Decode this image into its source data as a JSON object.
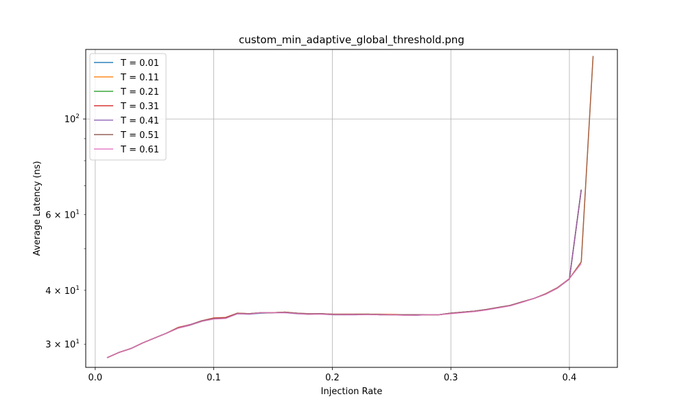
{
  "chart_data": {
    "type": "line",
    "title": "custom_min_adaptive_global_threshold.png",
    "xlabel": "Injection Rate",
    "ylabel": "Average Latency (ns)",
    "xlim": [
      -0.008,
      0.4405
    ],
    "ylim": [
      26.5,
      145
    ],
    "yscale": "log",
    "grid": true,
    "legend_position": "upper-left",
    "x_ticks": [
      0.0,
      0.1,
      0.2,
      0.3,
      0.4
    ],
    "x_tick_labels": [
      "0.0",
      "0.1",
      "0.2",
      "0.3",
      "0.4"
    ],
    "y_major_ticks": [
      100
    ],
    "y_major_tick_labels": [
      {
        "base": "10",
        "exp": "2"
      }
    ],
    "y_minor_ticks": [
      30,
      40,
      50,
      60,
      70,
      80,
      90
    ],
    "y_minor_tick_labels": [
      {
        "value": 30,
        "base": "3 × 10",
        "exp": "1"
      },
      {
        "value": 40,
        "base": "4 × 10",
        "exp": "1"
      },
      {
        "value": 60,
        "base": "6 × 10",
        "exp": "1"
      }
    ],
    "series": [
      {
        "name": "T = 0.01",
        "color": "#1f77b4",
        "x": [
          0.01,
          0.02,
          0.03,
          0.04,
          0.05,
          0.06,
          0.07,
          0.08,
          0.09,
          0.1,
          0.11,
          0.12,
          0.13,
          0.14,
          0.15,
          0.16,
          0.17,
          0.18,
          0.19,
          0.2,
          0.21,
          0.22,
          0.23,
          0.24,
          0.25,
          0.26,
          0.27,
          0.28,
          0.29,
          0.3,
          0.31,
          0.32,
          0.33,
          0.34,
          0.35,
          0.36,
          0.37,
          0.38,
          0.39,
          0.4,
          0.41
        ],
        "y": [
          27.9,
          28.7,
          29.3,
          30.2,
          31.0,
          31.8,
          32.7,
          33.2,
          33.9,
          34.4,
          34.5,
          35.3,
          35.2,
          35.4,
          35.5,
          35.5,
          35.3,
          35.2,
          35.3,
          35.1,
          35.1,
          35.1,
          35.2,
          35.1,
          35.1,
          35.1,
          35.0,
          35.1,
          35.1,
          35.4,
          35.6,
          35.8,
          36.1,
          36.5,
          36.9,
          37.6,
          38.3,
          39.2,
          40.5,
          42.5,
          68.5
        ]
      },
      {
        "name": "T = 0.11",
        "color": "#ff7f0e",
        "x": [
          0.01,
          0.02,
          0.03,
          0.04,
          0.05,
          0.06,
          0.07,
          0.08,
          0.09,
          0.1,
          0.11,
          0.12,
          0.13,
          0.14,
          0.15,
          0.16,
          0.17,
          0.18,
          0.19,
          0.2,
          0.21,
          0.22,
          0.23,
          0.24,
          0.25,
          0.26,
          0.27,
          0.28,
          0.29,
          0.3,
          0.31,
          0.32,
          0.33,
          0.34,
          0.35,
          0.36,
          0.37,
          0.38,
          0.39,
          0.4,
          0.41,
          0.42
        ],
        "y": [
          27.9,
          28.7,
          29.3,
          30.2,
          31.0,
          31.8,
          32.8,
          33.3,
          34.0,
          34.5,
          34.6,
          35.4,
          35.3,
          35.5,
          35.5,
          35.6,
          35.4,
          35.3,
          35.3,
          35.2,
          35.2,
          35.2,
          35.2,
          35.2,
          35.2,
          35.1,
          35.1,
          35.1,
          35.1,
          35.4,
          35.6,
          35.8,
          36.1,
          36.5,
          36.9,
          37.6,
          38.3,
          39.3,
          40.6,
          42.6,
          46.5,
          140
        ]
      },
      {
        "name": "T = 0.21",
        "color": "#2ca02c",
        "x": [
          0.01,
          0.02,
          0.03,
          0.04,
          0.05,
          0.06,
          0.07,
          0.08,
          0.09,
          0.1,
          0.11,
          0.12,
          0.13,
          0.14,
          0.15,
          0.16,
          0.17,
          0.18,
          0.19,
          0.2,
          0.21,
          0.22,
          0.23,
          0.24,
          0.25,
          0.26,
          0.27,
          0.28,
          0.29,
          0.3,
          0.31,
          0.32,
          0.33,
          0.34,
          0.35,
          0.36,
          0.37,
          0.38,
          0.39,
          0.4,
          0.41
        ],
        "y": [
          27.9,
          28.7,
          29.3,
          30.2,
          31.0,
          31.8,
          32.8,
          33.2,
          33.9,
          34.4,
          34.5,
          35.3,
          35.3,
          35.5,
          35.5,
          35.6,
          35.4,
          35.2,
          35.3,
          35.1,
          35.1,
          35.2,
          35.2,
          35.1,
          35.1,
          35.1,
          35.1,
          35.1,
          35.1,
          35.4,
          35.6,
          35.8,
          36.1,
          36.5,
          36.9,
          37.6,
          38.3,
          39.2,
          40.5,
          42.5,
          68.6
        ]
      },
      {
        "name": "T = 0.31",
        "color": "#d62728",
        "x": [
          0.01,
          0.02,
          0.03,
          0.04,
          0.05,
          0.06,
          0.07,
          0.08,
          0.09,
          0.1,
          0.11,
          0.12,
          0.13,
          0.14,
          0.15,
          0.16,
          0.17,
          0.18,
          0.19,
          0.2,
          0.21,
          0.22,
          0.23,
          0.24,
          0.25,
          0.26,
          0.27,
          0.28,
          0.29,
          0.3,
          0.31,
          0.32,
          0.33,
          0.34,
          0.35,
          0.36,
          0.37,
          0.38,
          0.39,
          0.4,
          0.41
        ],
        "y": [
          27.9,
          28.7,
          29.3,
          30.2,
          31.0,
          31.8,
          32.8,
          33.3,
          34.0,
          34.5,
          34.6,
          35.4,
          35.3,
          35.5,
          35.5,
          35.6,
          35.4,
          35.2,
          35.3,
          35.2,
          35.2,
          35.2,
          35.2,
          35.1,
          35.1,
          35.1,
          35.1,
          35.1,
          35.1,
          35.4,
          35.6,
          35.8,
          36.1,
          36.5,
          36.9,
          37.6,
          38.3,
          39.2,
          40.5,
          42.5,
          68.4
        ]
      },
      {
        "name": "T = 0.41",
        "color": "#9467bd",
        "x": [
          0.01,
          0.02,
          0.03,
          0.04,
          0.05,
          0.06,
          0.07,
          0.08,
          0.09,
          0.1,
          0.11,
          0.12,
          0.13,
          0.14,
          0.15,
          0.16,
          0.17,
          0.18,
          0.19,
          0.2,
          0.21,
          0.22,
          0.23,
          0.24,
          0.25,
          0.26,
          0.27,
          0.28,
          0.29,
          0.3,
          0.31,
          0.32,
          0.33,
          0.34,
          0.35,
          0.36,
          0.37,
          0.38,
          0.39,
          0.4,
          0.41
        ],
        "y": [
          27.9,
          28.7,
          29.3,
          30.2,
          31.0,
          31.8,
          32.7,
          33.3,
          34.0,
          34.4,
          34.5,
          35.3,
          35.3,
          35.5,
          35.5,
          35.5,
          35.4,
          35.3,
          35.3,
          35.2,
          35.1,
          35.1,
          35.2,
          35.1,
          35.1,
          35.1,
          35.1,
          35.1,
          35.1,
          35.4,
          35.6,
          35.8,
          36.1,
          36.5,
          36.9,
          37.6,
          38.3,
          39.2,
          40.5,
          42.5,
          68.5
        ]
      },
      {
        "name": "T = 0.51",
        "color": "#8c564b",
        "x": [
          0.01,
          0.02,
          0.03,
          0.04,
          0.05,
          0.06,
          0.07,
          0.08,
          0.09,
          0.1,
          0.11,
          0.12,
          0.13,
          0.14,
          0.15,
          0.16,
          0.17,
          0.18,
          0.19,
          0.2,
          0.21,
          0.22,
          0.23,
          0.24,
          0.25,
          0.26,
          0.27,
          0.28,
          0.29,
          0.3,
          0.31,
          0.32,
          0.33,
          0.34,
          0.35,
          0.36,
          0.37,
          0.38,
          0.39,
          0.4,
          0.41,
          0.42
        ],
        "y": [
          27.9,
          28.7,
          29.3,
          30.2,
          31.0,
          31.8,
          32.7,
          33.2,
          34.0,
          34.4,
          34.5,
          35.4,
          35.3,
          35.5,
          35.5,
          35.6,
          35.4,
          35.3,
          35.3,
          35.2,
          35.2,
          35.2,
          35.2,
          35.2,
          35.1,
          35.1,
          35.1,
          35.1,
          35.1,
          35.4,
          35.6,
          35.8,
          36.1,
          36.5,
          36.9,
          37.6,
          38.3,
          39.3,
          40.6,
          42.6,
          46.6,
          140
        ]
      },
      {
        "name": "T = 0.61",
        "color": "#e377c2",
        "x": [
          0.01,
          0.02,
          0.03,
          0.04,
          0.05,
          0.06,
          0.07,
          0.08,
          0.09,
          0.1,
          0.11,
          0.12,
          0.13,
          0.14,
          0.15,
          0.16,
          0.17,
          0.18,
          0.19,
          0.2,
          0.21,
          0.22,
          0.23,
          0.24,
          0.25,
          0.26,
          0.27,
          0.28,
          0.29,
          0.3,
          0.31,
          0.32,
          0.33,
          0.34,
          0.35,
          0.36,
          0.37,
          0.38,
          0.39,
          0.4,
          0.41
        ],
        "y": [
          27.9,
          28.7,
          29.3,
          30.2,
          31.0,
          31.8,
          32.7,
          33.2,
          33.9,
          34.3,
          34.4,
          35.3,
          35.2,
          35.5,
          35.5,
          35.5,
          35.3,
          35.2,
          35.2,
          35.1,
          35.1,
          35.1,
          35.1,
          35.1,
          35.1,
          35.0,
          35.0,
          35.1,
          35.1,
          35.3,
          35.5,
          35.7,
          36.0,
          36.4,
          36.8,
          37.5,
          38.3,
          39.2,
          40.5,
          42.6,
          46.1
        ]
      }
    ]
  }
}
